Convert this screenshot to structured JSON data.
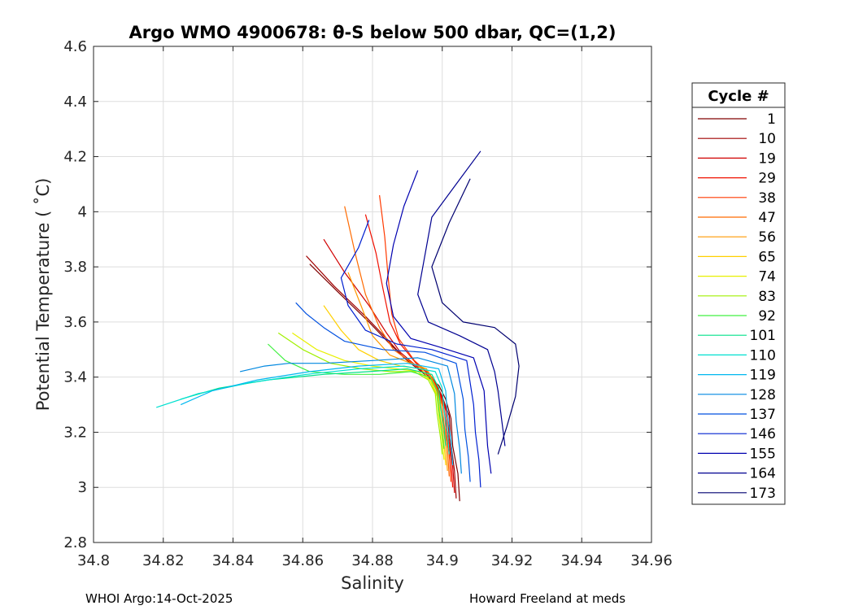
{
  "chart_data": {
    "type": "line",
    "title": "Argo WMO 4900678: θ-S below 500 dbar,  QC=(1,2)",
    "xlabel": "Salinity",
    "ylabel": "Potential Temperature ( ˚C)",
    "xlim": [
      34.8,
      34.96
    ],
    "ylim": [
      2.8,
      4.6
    ],
    "x_ticks": [
      34.8,
      34.82,
      34.84,
      34.86,
      34.88,
      34.9,
      34.92,
      34.94,
      34.96
    ],
    "x_tick_labels": [
      "34.8",
      "34.82",
      "34.84",
      "34.86",
      "34.88",
      "34.9",
      "34.92",
      "34.94",
      "34.96"
    ],
    "y_ticks": [
      2.8,
      3,
      3.2,
      3.4,
      3.6,
      3.8,
      4,
      4.2,
      4.4,
      4.6
    ],
    "y_tick_labels": [
      "2.8",
      "3",
      "3.2",
      "3.4",
      "3.6",
      "3.8",
      "4",
      "4.2",
      "4.4",
      "4.6"
    ],
    "grid": true,
    "legend_title": "Cycle #",
    "legend_position": "outside-right",
    "series": [
      {
        "name": "1",
        "color": "#800000",
        "s": [
          34.905,
          34.9045,
          34.903,
          34.9025,
          34.901,
          34.899,
          34.895,
          34.89,
          34.885,
          34.879,
          34.87,
          34.862
        ],
        "t": [
          2.95,
          3.05,
          3.15,
          3.25,
          3.32,
          3.37,
          3.41,
          3.46,
          3.52,
          3.6,
          3.71,
          3.81
        ]
      },
      {
        "name": "10",
        "color": "#a00000",
        "s": [
          34.904,
          34.9035,
          34.9025,
          34.902,
          34.9,
          34.898,
          34.894,
          34.889,
          34.884,
          34.878,
          34.869,
          34.861
        ],
        "t": [
          2.96,
          3.06,
          3.16,
          3.26,
          3.33,
          3.38,
          3.42,
          3.47,
          3.54,
          3.62,
          3.73,
          3.84
        ]
      },
      {
        "name": "19",
        "color": "#d00000",
        "s": [
          34.9035,
          34.903,
          34.902,
          34.9015,
          34.8995,
          34.8975,
          34.8935,
          34.888,
          34.884,
          34.879,
          34.872,
          34.866
        ],
        "t": [
          2.98,
          3.08,
          3.18,
          3.27,
          3.34,
          3.39,
          3.43,
          3.49,
          3.56,
          3.66,
          3.78,
          3.9
        ]
      },
      {
        "name": "29",
        "color": "#f01000",
        "s": [
          34.903,
          34.9025,
          34.9015,
          34.901,
          34.899,
          34.897,
          34.8925,
          34.888,
          34.885,
          34.883,
          34.881,
          34.878
        ],
        "t": [
          3.0,
          3.1,
          3.2,
          3.28,
          3.35,
          3.4,
          3.45,
          3.52,
          3.6,
          3.72,
          3.85,
          3.99
        ]
      },
      {
        "name": "38",
        "color": "#ff3a00",
        "s": [
          34.9025,
          34.902,
          34.901,
          34.9005,
          34.8985,
          34.8965,
          34.892,
          34.8875,
          34.8855,
          34.8845,
          34.8835,
          34.882
        ],
        "t": [
          3.02,
          3.12,
          3.22,
          3.29,
          3.36,
          3.41,
          3.46,
          3.54,
          3.63,
          3.76,
          3.91,
          4.06
        ]
      },
      {
        "name": "47",
        "color": "#ff6a00",
        "s": [
          34.902,
          34.9015,
          34.9005,
          34.9,
          34.898,
          34.896,
          34.8915,
          34.886,
          34.882,
          34.878,
          34.875,
          34.872
        ],
        "t": [
          3.04,
          3.14,
          3.23,
          3.3,
          3.37,
          3.42,
          3.45,
          3.5,
          3.58,
          3.7,
          3.85,
          4.02
        ]
      },
      {
        "name": "56",
        "color": "#ff9a00",
        "s": [
          34.9015,
          34.901,
          34.9,
          34.8995,
          34.8975,
          34.8955,
          34.891,
          34.885,
          34.88,
          34.877,
          34.873
        ],
        "t": [
          3.06,
          3.15,
          3.24,
          3.31,
          3.38,
          3.43,
          3.45,
          3.48,
          3.55,
          3.65,
          3.78
        ]
      },
      {
        "name": "65",
        "color": "#ffd000",
        "s": [
          34.901,
          34.9005,
          34.8995,
          34.899,
          34.897,
          34.894,
          34.888,
          34.882,
          34.876,
          34.871,
          34.866
        ],
        "t": [
          3.08,
          3.16,
          3.25,
          3.32,
          3.38,
          3.43,
          3.44,
          3.46,
          3.5,
          3.57,
          3.66
        ]
      },
      {
        "name": "74",
        "color": "#e8f000",
        "s": [
          34.9005,
          34.9,
          34.899,
          34.8985,
          34.8965,
          34.893,
          34.887,
          34.88,
          34.872,
          34.864,
          34.857
        ],
        "t": [
          3.1,
          3.17,
          3.26,
          3.33,
          3.39,
          3.42,
          3.43,
          3.44,
          3.46,
          3.5,
          3.56
        ]
      },
      {
        "name": "83",
        "color": "#a0f000",
        "s": [
          34.9,
          34.8995,
          34.8985,
          34.898,
          34.896,
          34.892,
          34.885,
          34.877,
          34.868,
          34.86,
          34.853
        ],
        "t": [
          3.12,
          3.18,
          3.27,
          3.34,
          3.39,
          3.42,
          3.42,
          3.43,
          3.45,
          3.5,
          3.56
        ]
      },
      {
        "name": "92",
        "color": "#40f040",
        "s": [
          34.9005,
          34.9,
          34.899,
          34.8985,
          34.8965,
          34.891,
          34.882,
          34.872,
          34.862,
          34.855,
          34.85
        ],
        "t": [
          3.14,
          3.2,
          3.28,
          3.35,
          3.4,
          3.42,
          3.41,
          3.41,
          3.42,
          3.46,
          3.52
        ]
      },
      {
        "name": "101",
        "color": "#00e08a",
        "s": [
          34.901,
          34.9005,
          34.8995,
          34.899,
          34.897,
          34.89,
          34.879,
          34.866,
          34.85,
          34.836,
          34.825
        ],
        "t": [
          3.15,
          3.22,
          3.29,
          3.36,
          3.41,
          3.43,
          3.42,
          3.41,
          3.39,
          3.36,
          3.32
        ]
      },
      {
        "name": "110",
        "color": "#00e0d0",
        "s": [
          34.902,
          34.9015,
          34.9005,
          34.9,
          34.898,
          34.889,
          34.876,
          34.861,
          34.845,
          34.83,
          34.818
        ],
        "t": [
          3.12,
          3.2,
          3.28,
          3.36,
          3.42,
          3.44,
          3.43,
          3.41,
          3.38,
          3.34,
          3.29
        ]
      },
      {
        "name": "119",
        "color": "#00b8f0",
        "s": [
          34.903,
          34.9025,
          34.9015,
          34.901,
          34.899,
          34.89,
          34.876,
          34.862,
          34.847,
          34.834,
          34.825
        ],
        "t": [
          3.08,
          3.17,
          3.26,
          3.35,
          3.43,
          3.45,
          3.44,
          3.42,
          3.39,
          3.35,
          3.3
        ]
      },
      {
        "name": "128",
        "color": "#0088e0",
        "s": [
          34.9055,
          34.905,
          34.904,
          34.9035,
          34.9015,
          34.893,
          34.88,
          34.866,
          34.856,
          34.849,
          34.842
        ],
        "t": [
          3.05,
          3.14,
          3.24,
          3.34,
          3.44,
          3.47,
          3.46,
          3.45,
          3.45,
          3.44,
          3.42
        ]
      },
      {
        "name": "137",
        "color": "#0050e0",
        "s": [
          34.908,
          34.9075,
          34.9065,
          34.906,
          34.904,
          34.895,
          34.883,
          34.872,
          34.866,
          34.861,
          34.858
        ],
        "t": [
          3.02,
          3.11,
          3.21,
          3.32,
          3.45,
          3.49,
          3.5,
          3.53,
          3.58,
          3.63,
          3.67
        ]
      },
      {
        "name": "146",
        "color": "#0020d0",
        "s": [
          34.911,
          34.9105,
          34.9095,
          34.909,
          34.907,
          34.897,
          34.887,
          34.878,
          34.873,
          34.871,
          34.876,
          34.879
        ],
        "t": [
          3.0,
          3.1,
          3.2,
          3.3,
          3.46,
          3.5,
          3.52,
          3.57,
          3.66,
          3.76,
          3.87,
          3.97
        ]
      },
      {
        "name": "155",
        "color": "#0000b0",
        "s": [
          34.914,
          34.913,
          34.9125,
          34.912,
          34.909,
          34.899,
          34.891,
          34.886,
          34.884,
          34.886,
          34.889,
          34.893
        ],
        "t": [
          3.05,
          3.15,
          3.25,
          3.35,
          3.47,
          3.51,
          3.54,
          3.62,
          3.74,
          3.88,
          4.02,
          4.15
        ]
      },
      {
        "name": "164",
        "color": "#000090",
        "s": [
          34.918,
          34.917,
          34.916,
          34.915,
          34.913,
          34.905,
          34.896,
          34.893,
          34.895,
          34.897,
          34.904,
          34.911
        ],
        "t": [
          3.15,
          3.25,
          3.35,
          3.42,
          3.5,
          3.55,
          3.6,
          3.7,
          3.84,
          3.98,
          4.1,
          4.22
        ]
      },
      {
        "name": "173",
        "color": "#000070",
        "s": [
          34.916,
          34.9185,
          34.921,
          34.922,
          34.921,
          34.915,
          34.906,
          34.9,
          34.897,
          34.902,
          34.908
        ],
        "t": [
          3.12,
          3.22,
          3.33,
          3.44,
          3.52,
          3.58,
          3.6,
          3.67,
          3.8,
          3.96,
          4.12
        ]
      }
    ]
  },
  "footer": {
    "left": "WHOI Argo:14-Oct-2025",
    "right": "Howard Freeland at meds"
  }
}
